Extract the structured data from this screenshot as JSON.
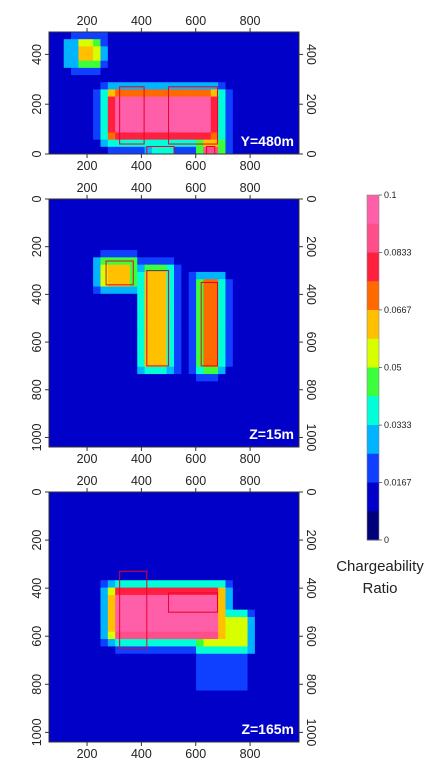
{
  "chart_data": {
    "type": "heatmap",
    "colorbar": {
      "title_line1": "Chargeability",
      "title_line2": "Ratio",
      "range": [
        0,
        0.1
      ],
      "ticks": [
        "0.1",
        "0.0833",
        "0.0667",
        "0.05",
        "0.0333",
        "0.0167",
        "0"
      ],
      "tick_values": [
        0.1,
        0.0833,
        0.0667,
        0.05,
        0.0333,
        0.0167,
        0
      ],
      "colors": [
        "#00007a",
        "#0000c8",
        "#1040ff",
        "#00b4ff",
        "#00ffd8",
        "#3cff3c",
        "#d8ff00",
        "#ffc000",
        "#ff6a00",
        "#ff2040",
        "#ff4f8a",
        "#ff5fa8"
      ]
    },
    "panels": [
      {
        "label": "Y=480m",
        "xlim": [
          60,
          980
        ],
        "ylim": [
          490,
          0
        ],
        "xticks": [
          "200",
          "400",
          "600",
          "800"
        ],
        "xtick_values": [
          200,
          400,
          600,
          800
        ],
        "yticks": [
          "0",
          "200",
          "400"
        ],
        "ytick_values": [
          0,
          200,
          400
        ],
        "background": 0.01,
        "blobs": [
          {
            "x": [
              300,
              660
            ],
            "y": [
              80,
              230
            ],
            "value": 0.1
          },
          {
            "x": [
              440,
              500
            ],
            "y": [
              0,
              30
            ],
            "value": 0.04
          },
          {
            "x": [
              640,
              670
            ],
            "y": [
              0,
              30
            ],
            "value": 0.09
          },
          {
            "x": [
              180,
              230
            ],
            "y": [
              370,
              440
            ],
            "value": 0.06
          },
          {
            "x": [
              120,
              260
            ],
            "y": [
              360,
              460
            ],
            "value": 0.025
          }
        ],
        "boxes": [
          {
            "x": [
              320,
              410
            ],
            "y": [
              40,
              270
            ]
          },
          {
            "x": [
              500,
              680
            ],
            "y": [
              40,
              270
            ]
          },
          {
            "x": [
              420,
              520
            ],
            "y": [
              0,
              30
            ]
          },
          {
            "x": [
              640,
              670
            ],
            "y": [
              0,
              30
            ]
          }
        ]
      },
      {
        "label": "Z=15m",
        "xlim": [
          60,
          980
        ],
        "ylim": [
          0,
          1040
        ],
        "xticks": [
          "200",
          "400",
          "600",
          "800"
        ],
        "xtick_values": [
          200,
          400,
          600,
          800
        ],
        "yticks": [
          "0",
          "200",
          "400",
          "600",
          "800",
          "1000"
        ],
        "ytick_values": [
          0,
          200,
          400,
          600,
          800,
          1000
        ],
        "background": 0.01,
        "blobs": [
          {
            "x": [
              420,
              490
            ],
            "y": [
              300,
              700
            ],
            "value": 0.06
          },
          {
            "x": [
              630,
              670
            ],
            "y": [
              350,
              700
            ],
            "value": 0.07
          },
          {
            "x": [
              270,
              360
            ],
            "y": [
              270,
              350
            ],
            "value": 0.065
          }
        ],
        "boxes": [
          {
            "x": [
              420,
              500
            ],
            "y": [
              300,
              700
            ]
          },
          {
            "x": [
              620,
              680
            ],
            "y": [
              350,
              700
            ]
          },
          {
            "x": [
              270,
              370
            ],
            "y": [
              260,
              360
            ]
          }
        ]
      },
      {
        "label": "Z=165m",
        "xlim": [
          60,
          980
        ],
        "ylim": [
          0,
          1040
        ],
        "xticks": [
          "200",
          "400",
          "600",
          "800"
        ],
        "xtick_values": [
          200,
          400,
          600,
          800
        ],
        "yticks": [
          "0",
          "200",
          "400",
          "600",
          "800",
          "1000"
        ],
        "ytick_values": [
          0,
          200,
          400,
          600,
          800,
          1000
        ],
        "background": 0.012,
        "blobs": [
          {
            "x": [
              310,
              680
            ],
            "y": [
              420,
              590
            ],
            "value": 0.1
          },
          {
            "x": [
              620,
              780
            ],
            "y": [
              520,
              650
            ],
            "value": 0.05
          },
          {
            "x": [
              600,
              800
            ],
            "y": [
              720,
              820
            ],
            "value": 0.018
          }
        ],
        "boxes": [
          {
            "x": [
              320,
              420
            ],
            "y": [
              330,
              650
            ]
          },
          {
            "x": [
              500,
              680
            ],
            "y": [
              420,
              500
            ]
          }
        ]
      }
    ]
  }
}
